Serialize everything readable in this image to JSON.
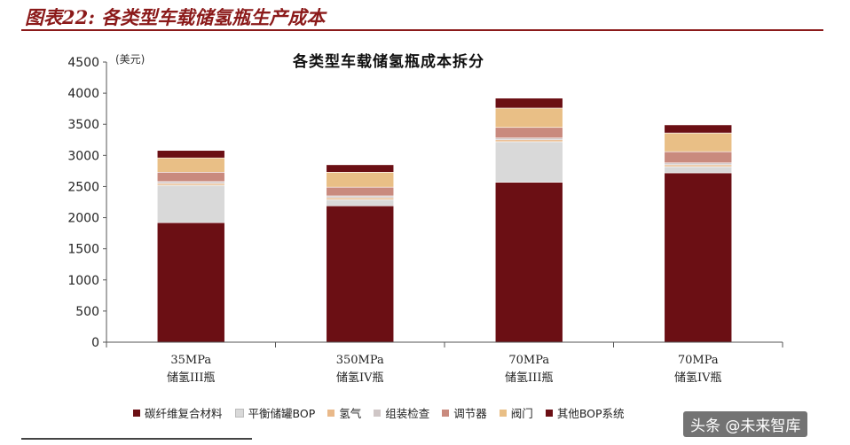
{
  "caption": "图表22: 各类型车载储氢瓶生产成本",
  "watermark": "头条 @未来智库",
  "chart_data": {
    "type": "bar",
    "stacked": true,
    "title": "各类型车载储氢瓶成本拆分",
    "ylabel": "(美元)",
    "ylim": [
      0,
      4500
    ],
    "yticks": [
      0,
      500,
      1000,
      1500,
      2000,
      2500,
      3000,
      3500,
      4000,
      4500
    ],
    "grid": false,
    "legend_position": "bottom",
    "categories": [
      [
        "35MPa",
        "储氢III瓶"
      ],
      [
        "350MPa",
        "储氢IV瓶"
      ],
      [
        "70MPa",
        "储氢III瓶"
      ],
      [
        "70MPa",
        "储氢IV瓶"
      ]
    ],
    "series": [
      {
        "name": "碳纤维复合材料",
        "color": "#6b0f14",
        "values": [
          1920,
          2190,
          2570,
          2720
        ]
      },
      {
        "name": "平衡储罐BOP",
        "color": "#d9d9d9",
        "values": [
          600,
          100,
          650,
          100
        ]
      },
      {
        "name": "氢气",
        "color": "#e9b98a",
        "values": [
          30,
          30,
          30,
          30
        ]
      },
      {
        "name": "组装检查",
        "color": "#cfc6c6",
        "values": [
          30,
          30,
          30,
          30
        ]
      },
      {
        "name": "调节器",
        "color": "#c98a7e",
        "values": [
          150,
          140,
          170,
          180
        ]
      },
      {
        "name": "阀门",
        "color": "#e9bf86",
        "values": [
          230,
          240,
          310,
          300
        ]
      },
      {
        "name": "其他BOP系统",
        "color": "#6b0f14",
        "values": [
          120,
          120,
          160,
          130
        ]
      }
    ]
  }
}
